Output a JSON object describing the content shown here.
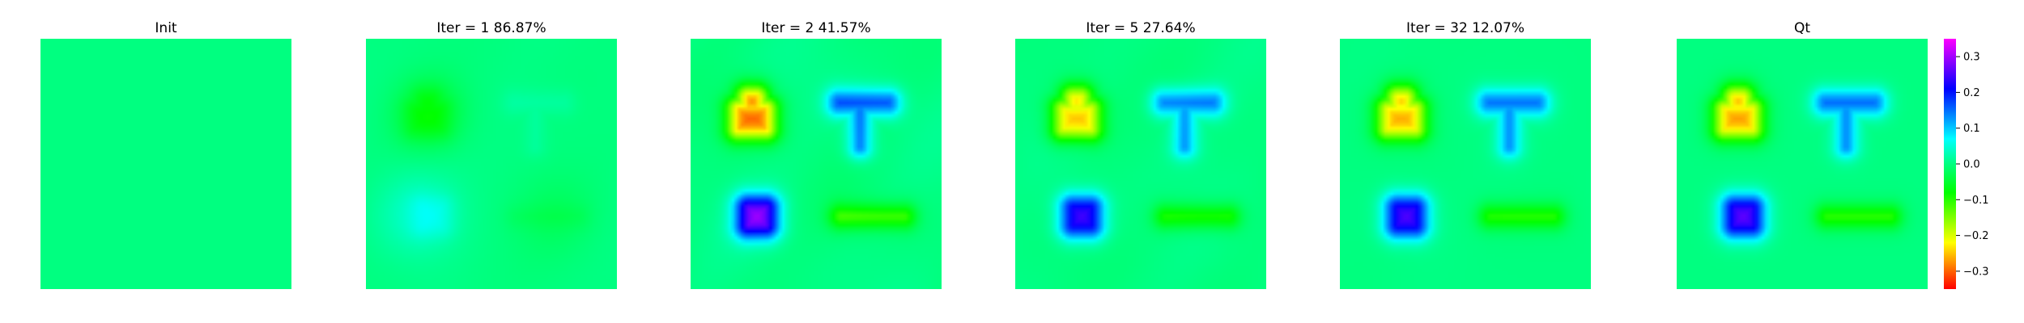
{
  "chart_data": {
    "type": "heatmap",
    "panels": [
      {
        "title": "Init",
        "scale": 0.0,
        "noise": 0.0
      },
      {
        "title": "Iter = 1    86.87%",
        "scale": 0.12,
        "noise": 0.05
      },
      {
        "title": "Iter = 2    41.57%",
        "scale": 1.1,
        "noise": 0.16
      },
      {
        "title": "Iter = 5    27.64%",
        "scale": 0.95,
        "noise": 0.12
      },
      {
        "title": "Iter = 32    12.07%",
        "scale": 0.97,
        "noise": 0.03
      },
      {
        "title": "Qt",
        "scale": 1.0,
        "noise": 0.0
      }
    ],
    "colorbar": {
      "vmin": -0.35,
      "vmax": 0.35,
      "ticks": [
        0.3,
        0.2,
        0.1,
        0.0,
        -0.1,
        -0.2,
        -0.3
      ],
      "tick_labels": [
        "0.3",
        "0.2",
        "0.1",
        "0.0",
        "−0.1",
        "−0.2",
        "−0.3"
      ],
      "colormap": "gist_rainbow",
      "stops": [
        {
          "v": -0.35,
          "color": "#ff0000"
        },
        {
          "v": -0.22,
          "color": "#ffff00"
        },
        {
          "v": -0.08,
          "color": "#00ff00"
        },
        {
          "v": 0.0,
          "color": "#00ff80"
        },
        {
          "v": 0.07,
          "color": "#00ffff"
        },
        {
          "v": 0.21,
          "color": "#0000ff"
        },
        {
          "v": 0.35,
          "color": "#ff00ff"
        }
      ]
    },
    "features": [
      {
        "shape": "rounded-house",
        "value": -0.28
      },
      {
        "shape": "T",
        "value": 0.17
      },
      {
        "shape": "rounded-square",
        "value": 0.27
      },
      {
        "shape": "horizontal-bar",
        "value": -0.12
      }
    ],
    "grid_size": [
      80,
      80
    ]
  }
}
